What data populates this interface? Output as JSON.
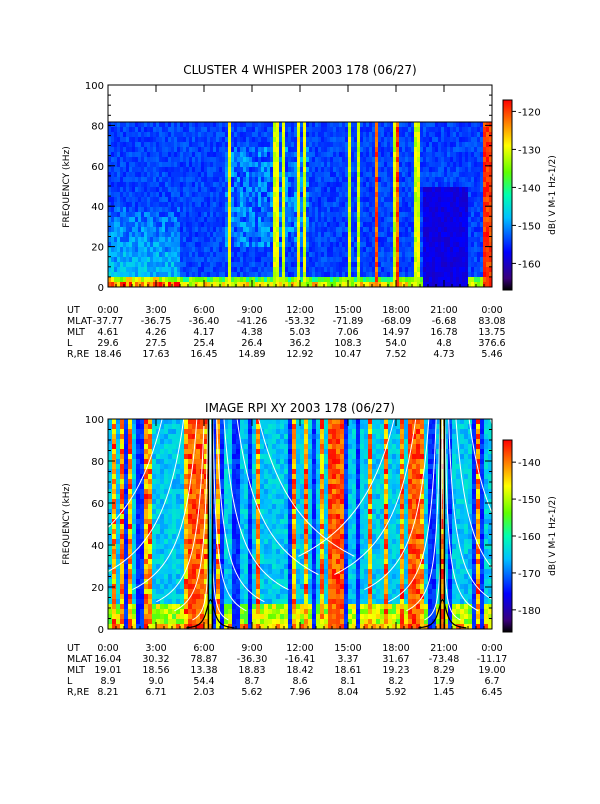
{
  "chart_data": [
    {
      "type": "heatmap",
      "title": "CLUSTER 4 WHISPER 2003 178 (06/27)",
      "ylabel": "FREQUENCY (kHz)",
      "ylim": [
        0,
        100
      ],
      "yticks": [
        "0",
        "20",
        "40",
        "60",
        "80",
        "100"
      ],
      "data_ceiling_khz": 80,
      "colorbar": {
        "label": "dB( V M-1 Hz-1/2)",
        "range": [
          -167,
          -117
        ],
        "ticks": [
          "-120",
          "-130",
          "-140",
          "-150",
          "-160"
        ],
        "colormap": "rainbow"
      },
      "x_ticks": [
        "0:00",
        "3:00",
        "6:00",
        "9:00",
        "12:00",
        "15:00",
        "18:00",
        "21:00",
        "0:00"
      ],
      "ephemeris": [
        {
          "label": "UT",
          "values": [
            "0:00",
            "3:00",
            "6:00",
            "9:00",
            "12:00",
            "15:00",
            "18:00",
            "21:00",
            "0:00"
          ]
        },
        {
          "label": "MLAT",
          "values": [
            "-37.77",
            "-36.75",
            "-36.40",
            "-41.26",
            "-53.32",
            "-71.89",
            "-68.09",
            "-6.68",
            "83.08"
          ]
        },
        {
          "label": "MLT",
          "values": [
            "4.61",
            "4.26",
            "4.17",
            "4.38",
            "5.03",
            "7.06",
            "14.97",
            "16.78",
            "13.75"
          ]
        },
        {
          "label": "L",
          "values": [
            "29.6",
            "27.5",
            "25.4",
            "26.4",
            "36.2",
            "108.3",
            "54.0",
            "4.8",
            "376.6"
          ]
        },
        {
          "label": "R,RE",
          "values": [
            "18.46",
            "17.63",
            "16.45",
            "14.89",
            "12.92",
            "10.47",
            "7.52",
            "4.73",
            "5.46"
          ]
        }
      ]
    },
    {
      "type": "heatmap",
      "title": "IMAGE RPI XY 2003 178 (06/27)",
      "ylabel": "FREQUENCY (kHz)",
      "ylim": [
        0,
        100
      ],
      "yticks": [
        "0",
        "20",
        "40",
        "60",
        "80",
        "100"
      ],
      "colorbar": {
        "label": "dB( V M-1 Hz-1/2)",
        "range": [
          -186,
          -134
        ],
        "ticks": [
          "-140",
          "-150",
          "-160",
          "-170",
          "-180"
        ],
        "colormap": "rainbow"
      },
      "x_ticks": [
        "0:00",
        "3:00",
        "6:00",
        "9:00",
        "12:00",
        "15:00",
        "18:00",
        "21:00",
        "0:00"
      ],
      "perigee_hours": [
        6.4,
        20.9
      ],
      "ephemeris": [
        {
          "label": "UT",
          "values": [
            "0:00",
            "3:00",
            "6:00",
            "9:00",
            "12:00",
            "15:00",
            "18:00",
            "21:00",
            "0:00"
          ]
        },
        {
          "label": "MLAT",
          "values": [
            "16.04",
            "30.32",
            "78.87",
            "-36.30",
            "-16.41",
            "3.37",
            "31.67",
            "-73.48",
            "-11.17"
          ]
        },
        {
          "label": "MLT",
          "values": [
            "19.01",
            "18.56",
            "13.38",
            "18.83",
            "18.42",
            "18.61",
            "19.23",
            "8.29",
            "19.00"
          ]
        },
        {
          "label": "L",
          "values": [
            "8.9",
            "9.0",
            "54.4",
            "8.7",
            "8.6",
            "8.1",
            "8.2",
            "17.9",
            "6.7"
          ]
        },
        {
          "label": "R,RE",
          "values": [
            "8.21",
            "6.71",
            "2.03",
            "5.62",
            "7.96",
            "8.04",
            "5.92",
            "1.45",
            "6.45"
          ]
        }
      ]
    }
  ]
}
